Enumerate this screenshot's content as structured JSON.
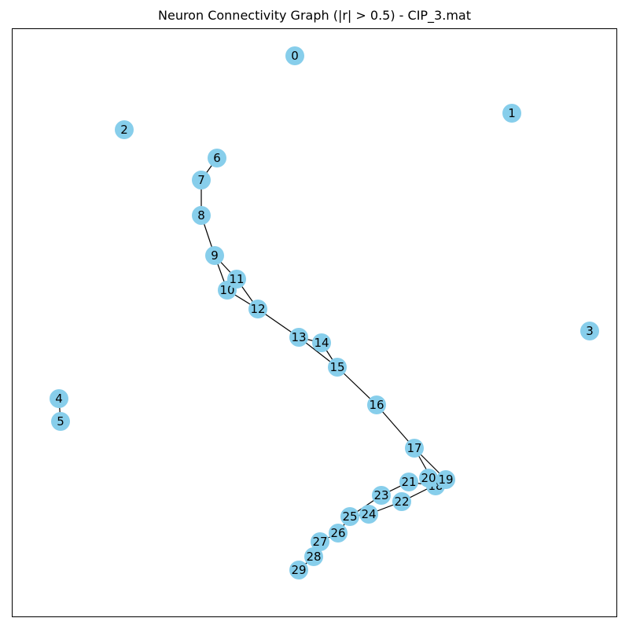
{
  "figure": {
    "title": "Neuron Connectivity Graph (|r| > 0.5) - CIP_3.mat"
  },
  "colors": {
    "node_fill": "#87ceeb",
    "edge": "#000000",
    "frame": "#000000",
    "background": "#ffffff"
  },
  "graph": {
    "nodes": [
      {
        "id": "0"
      },
      {
        "id": "1"
      },
      {
        "id": "2"
      },
      {
        "id": "3"
      },
      {
        "id": "4"
      },
      {
        "id": "5"
      },
      {
        "id": "6"
      },
      {
        "id": "7"
      },
      {
        "id": "8"
      },
      {
        "id": "9"
      },
      {
        "id": "10"
      },
      {
        "id": "11"
      },
      {
        "id": "12"
      },
      {
        "id": "13"
      },
      {
        "id": "14"
      },
      {
        "id": "15"
      },
      {
        "id": "16"
      },
      {
        "id": "17"
      },
      {
        "id": "18"
      },
      {
        "id": "19"
      },
      {
        "id": "20"
      },
      {
        "id": "21"
      },
      {
        "id": "22"
      },
      {
        "id": "23"
      },
      {
        "id": "24"
      },
      {
        "id": "25"
      },
      {
        "id": "26"
      },
      {
        "id": "27"
      },
      {
        "id": "28"
      },
      {
        "id": "29"
      }
    ],
    "edges": [
      [
        "4",
        "5"
      ],
      [
        "6",
        "7"
      ],
      [
        "7",
        "8"
      ],
      [
        "8",
        "9"
      ],
      [
        "9",
        "10"
      ],
      [
        "9",
        "11"
      ],
      [
        "10",
        "12"
      ],
      [
        "11",
        "12"
      ],
      [
        "12",
        "13"
      ],
      [
        "13",
        "14"
      ],
      [
        "13",
        "15"
      ],
      [
        "14",
        "15"
      ],
      [
        "15",
        "16"
      ],
      [
        "16",
        "17"
      ],
      [
        "17",
        "18"
      ],
      [
        "17",
        "19"
      ],
      [
        "18",
        "21"
      ],
      [
        "19",
        "22"
      ],
      [
        "21",
        "23"
      ],
      [
        "22",
        "24"
      ],
      [
        "23",
        "25"
      ],
      [
        "24",
        "25"
      ],
      [
        "25",
        "26"
      ],
      [
        "26",
        "27"
      ],
      [
        "27",
        "28"
      ],
      [
        "28",
        "29"
      ]
    ]
  }
}
